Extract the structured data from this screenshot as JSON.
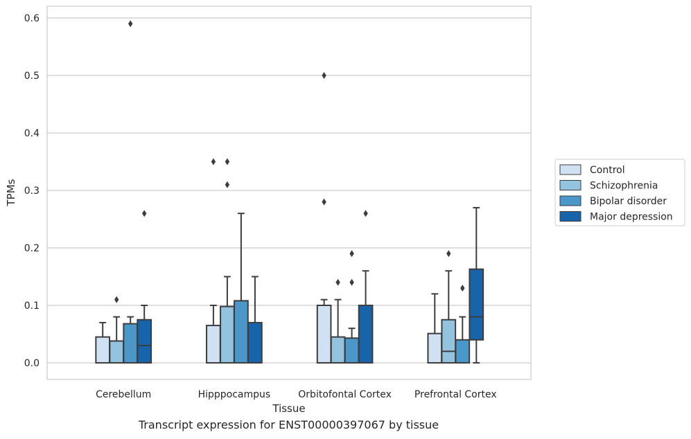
{
  "caption": "Transcript expression for ENST00000397067 by tissue",
  "chart_data": {
    "type": "box",
    "title": "",
    "xlabel": "Tissue",
    "ylabel": "TPMs",
    "ylim": [
      -0.028,
      0.62
    ],
    "yticks": [
      0.0,
      0.1,
      0.2,
      0.3,
      0.4,
      0.5,
      0.6
    ],
    "ytick_labels": [
      "0.0",
      "0.1",
      "0.2",
      "0.3",
      "0.4",
      "0.5",
      "0.6"
    ],
    "grid": "horizontal",
    "legend_position": "right",
    "categories": [
      "Cerebellum",
      "Hipppocampus",
      "Orbitofontal Cortex",
      "Prefrontal Cortex"
    ],
    "series": [
      {
        "name": "Control",
        "color": "#cfe1f2",
        "boxes": [
          {
            "q1": 0.0,
            "median": 0.0,
            "q3": 0.045,
            "whisker_low": 0.0,
            "whisker_high": 0.07,
            "outliers": []
          },
          {
            "q1": 0.0,
            "median": 0.0,
            "q3": 0.065,
            "whisker_low": 0.0,
            "whisker_high": 0.1,
            "outliers": [
              0.35
            ]
          },
          {
            "q1": 0.0,
            "median": 0.1,
            "q3": 0.1,
            "whisker_low": 0.0,
            "whisker_high": 0.11,
            "outliers": [
              0.5,
              0.28
            ]
          },
          {
            "q1": 0.0,
            "median": 0.0,
            "q3": 0.051,
            "whisker_low": 0.0,
            "whisker_high": 0.12,
            "outliers": []
          }
        ]
      },
      {
        "name": "Schizophrenia",
        "color": "#93c3df",
        "boxes": [
          {
            "q1": 0.0,
            "median": 0.0,
            "q3": 0.038,
            "whisker_low": 0.0,
            "whisker_high": 0.08,
            "outliers": [
              0.11
            ]
          },
          {
            "q1": 0.0,
            "median": 0.0,
            "q3": 0.098,
            "whisker_low": 0.0,
            "whisker_high": 0.15,
            "outliers": [
              0.35,
              0.31
            ]
          },
          {
            "q1": 0.0,
            "median": 0.0,
            "q3": 0.045,
            "whisker_low": 0.0,
            "whisker_high": 0.11,
            "outliers": [
              0.14
            ]
          },
          {
            "q1": 0.0,
            "median": 0.02,
            "q3": 0.075,
            "whisker_low": 0.0,
            "whisker_high": 0.16,
            "outliers": [
              0.19
            ]
          }
        ]
      },
      {
        "name": "Bipolar disorder",
        "color": "#4b97c9",
        "boxes": [
          {
            "q1": 0.0,
            "median": 0.0,
            "q3": 0.068,
            "whisker_low": 0.0,
            "whisker_high": 0.08,
            "outliers": [
              0.59
            ]
          },
          {
            "q1": 0.0,
            "median": 0.0,
            "q3": 0.108,
            "whisker_low": 0.0,
            "whisker_high": 0.26,
            "outliers": []
          },
          {
            "q1": 0.0,
            "median": 0.0,
            "q3": 0.043,
            "whisker_low": 0.0,
            "whisker_high": 0.06,
            "outliers": [
              0.19,
              0.14
            ]
          },
          {
            "q1": 0.0,
            "median": 0.0,
            "q3": 0.04,
            "whisker_low": 0.0,
            "whisker_high": 0.08,
            "outliers": [
              0.13
            ]
          }
        ]
      },
      {
        "name": "Major depression",
        "color": "#1764ab",
        "boxes": [
          {
            "q1": 0.0,
            "median": 0.03,
            "q3": 0.075,
            "whisker_low": 0.0,
            "whisker_high": 0.1,
            "outliers": [
              0.26
            ]
          },
          {
            "q1": 0.0,
            "median": 0.0,
            "q3": 0.07,
            "whisker_low": 0.0,
            "whisker_high": 0.15,
            "outliers": []
          },
          {
            "q1": 0.0,
            "median": 0.0,
            "q3": 0.1,
            "whisker_low": 0.0,
            "whisker_high": 0.16,
            "outliers": [
              0.26
            ]
          },
          {
            "q1": 0.04,
            "median": 0.08,
            "q3": 0.163,
            "whisker_low": 0.0,
            "whisker_high": 0.27,
            "outliers": []
          }
        ]
      }
    ]
  }
}
